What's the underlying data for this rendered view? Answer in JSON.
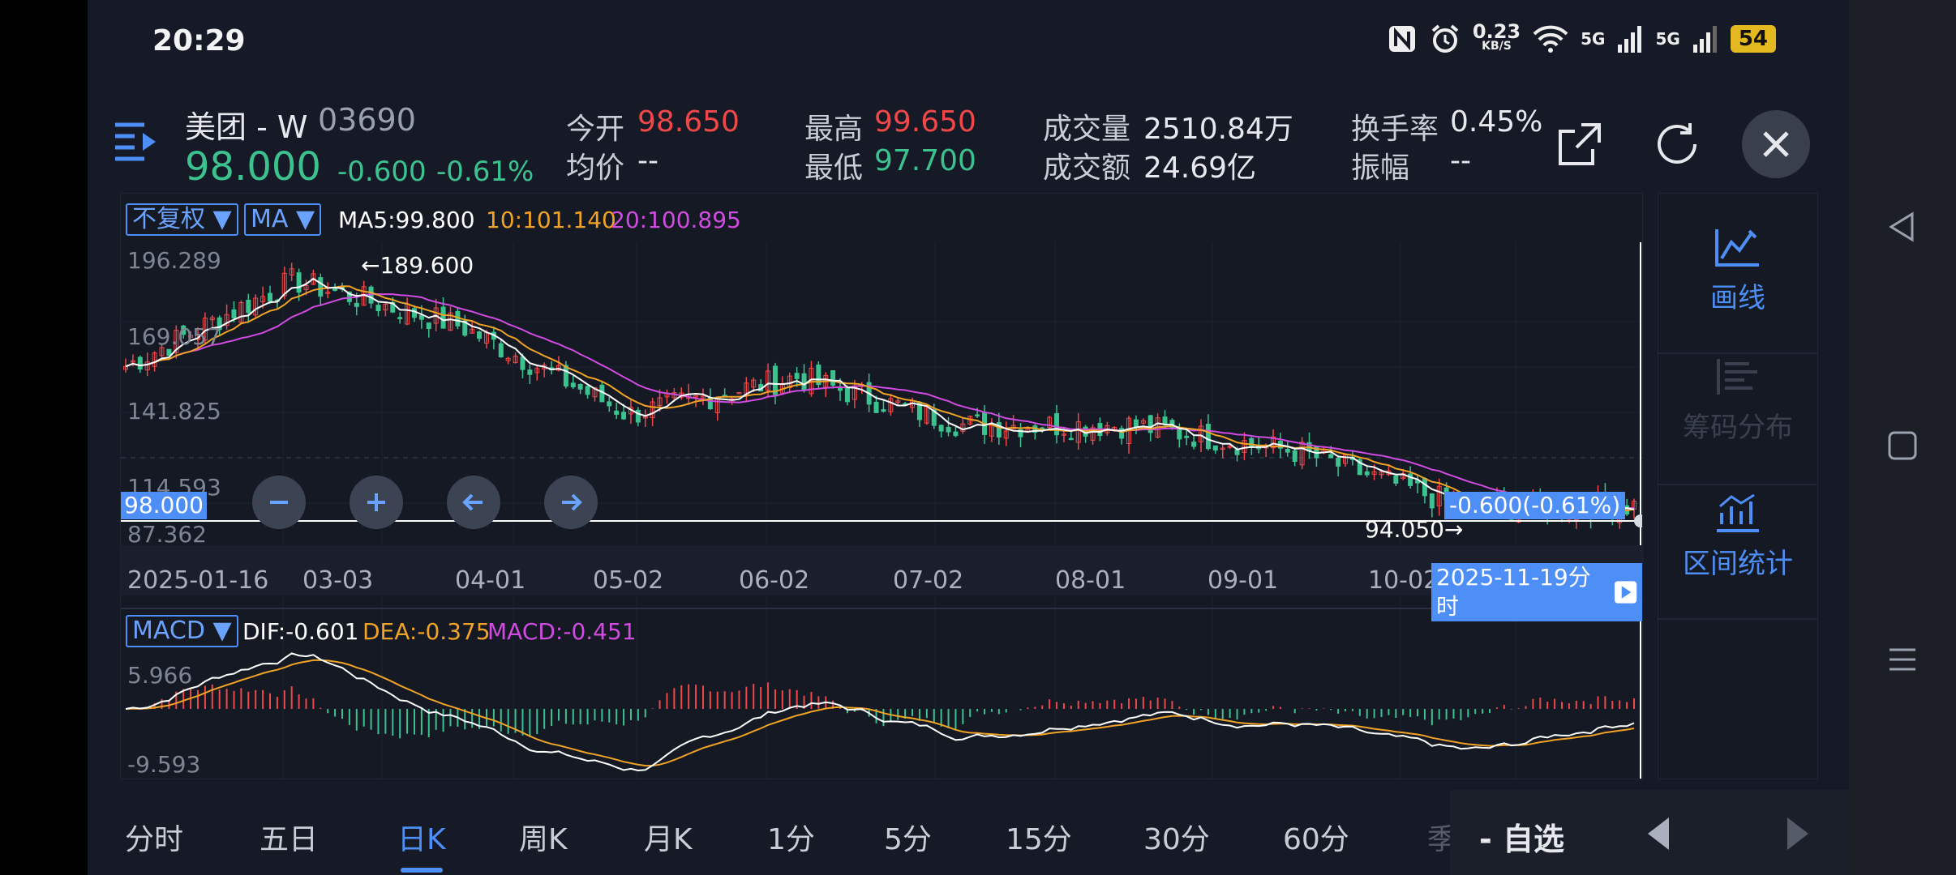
{
  "status_bar": {
    "time": "20:29",
    "net_speed_top": "0.23",
    "net_speed_bottom": "KB/S",
    "signal_label_1": "5G",
    "signal_label_2": "5G",
    "battery": "54"
  },
  "stock": {
    "name": "美团 - W",
    "code": "03690",
    "price": "98.000",
    "change": "-0.600",
    "change_pct": "-0.61%"
  },
  "quote": {
    "open_label": "今开",
    "open": "98.650",
    "avg_label": "均价",
    "avg": "--",
    "high_label": "最高",
    "high": "99.650",
    "low_label": "最低",
    "low": "97.700",
    "volume_label": "成交量",
    "volume": "2510.84万",
    "amount_label": "成交额",
    "amount": "24.69亿",
    "turnover_label": "换手率",
    "turnover": "0.45%",
    "amplitude_label": "振幅",
    "amplitude": "--"
  },
  "chart": {
    "adjust_select": "不复权",
    "ma_select": "MA",
    "ma5": "MA5:99.800",
    "ma10": "10:101.140",
    "ma20": "20:100.895",
    "y_axis": [
      "196.289",
      "169.057",
      "141.825",
      "114.593",
      "87.362"
    ],
    "max_marker": "←189.600",
    "min_marker": "94.050→",
    "price_tag": "98.000",
    "change_tag": "-0.600(-0.61%)",
    "dates": [
      "2025-01-16",
      "03-03",
      "04-01",
      "05-02",
      "06-02",
      "07-02",
      "08-01",
      "09-01",
      "10-02"
    ],
    "crosshair_date": "2025-11-19分时",
    "colors": {
      "up": "#f04848",
      "down": "#3cc28f",
      "ma5": "#ffffff",
      "ma10": "#f0a324",
      "ma20": "#d04be0",
      "accent": "#4e8ef7"
    }
  },
  "macd": {
    "select": "MACD",
    "dif": "DIF:-0.601",
    "dea": "DEA:-0.375",
    "macd": "MACD:-0.451",
    "y_top": "5.966",
    "y_bottom": "-9.593"
  },
  "chart_data": {
    "type": "line",
    "x": [
      "2025-01-16",
      "03-03",
      "04-01",
      "05-02",
      "06-02",
      "07-02",
      "08-01",
      "09-01",
      "10-02",
      "2025-11-19"
    ],
    "series": [
      {
        "values": [
          150,
          182,
          165,
          132,
          146,
          128,
          128,
          118,
          97,
          98
        ]
      }
    ],
    "ylim": [
      87.362,
      196.289
    ],
    "max": 189.6,
    "min": 94.05
  },
  "right_panel": {
    "draw_line": "画线",
    "chip_dist": "筹码分布",
    "range_stats": "区间统计"
  },
  "tabs": [
    "分时",
    "五日",
    "日K",
    "周K",
    "月K",
    "1分",
    "5分",
    "15分",
    "30分",
    "60分",
    "季"
  ],
  "bottom": {
    "favorite": "- 自选"
  }
}
